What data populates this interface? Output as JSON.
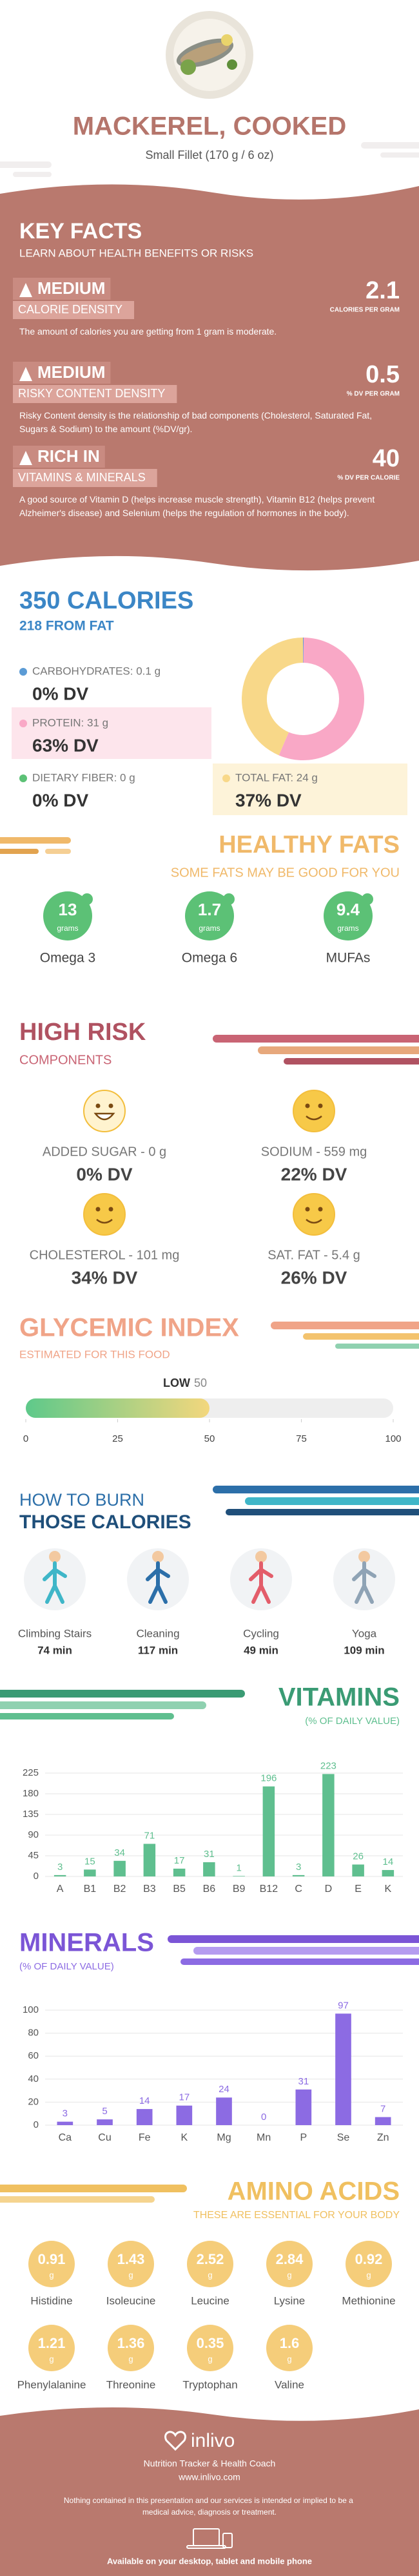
{
  "header": {
    "title": "MACKEREL, COOKED",
    "subtitle": "Small Fillet (170 g / 6 oz)"
  },
  "key_facts": {
    "title": "KEY FACTS",
    "subtitle": "LEARN ABOUT HEALTH BENEFITS OR RISKS",
    "items": [
      {
        "level": "MEDIUM",
        "name": "CALORIE DENSITY",
        "value": "2.1",
        "unit": "CALORIES PER GRAM",
        "description": "The amount of calories you are getting from 1 gram is moderate."
      },
      {
        "level": "MEDIUM",
        "name": "RISKY CONTENT DENSITY",
        "value": "0.5",
        "unit": "% DV PER GRAM",
        "description": "Risky Content density is the relationship of bad components (Cholesterol, Saturated Fat, Sugars & Sodium) to the amount (%DV/gr)."
      },
      {
        "level": "RICH IN",
        "name": "VITAMINS & MINERALS",
        "value": "40",
        "unit": "% DV PER CALORIE",
        "description": "A good source of Vitamin D (helps increase muscle strength), Vitamin B12 (helps prevent Alzheimer's disease) and Selenium (helps the regulation of hormones in the body)."
      }
    ]
  },
  "calories": {
    "title": "350 CALORIES",
    "subtitle": "218 FROM FAT",
    "items": [
      {
        "label": "CARBOHYDRATES: 0.1 g",
        "dv": "0% DV"
      },
      {
        "label": "PROTEIN: 31 g",
        "dv": "63% DV"
      },
      {
        "label": "DIETARY FIBER: 0 g",
        "dv": "0% DV"
      },
      {
        "label": "TOTAL FAT: 24 g",
        "dv": "37% DV"
      }
    ]
  },
  "healthy_fats": {
    "title": "HEALTHY FATS",
    "subtitle": "SOME FATS MAY BE GOOD FOR YOU",
    "items": [
      {
        "value": "13",
        "unit": "grams",
        "name": "Omega 3"
      },
      {
        "value": "1.7",
        "unit": "grams",
        "name": "Omega 6"
      },
      {
        "value": "9.4",
        "unit": "grams",
        "name": "MUFAs"
      }
    ]
  },
  "high_risk": {
    "title": "HIGH RISK",
    "subtitle": "COMPONENTS",
    "items": [
      {
        "label": "ADDED SUGAR - 0 g",
        "dv": "0% DV"
      },
      {
        "label": "SODIUM - 559 mg",
        "dv": "22% DV"
      },
      {
        "label": "CHOLESTEROL - 101 mg",
        "dv": "34% DV"
      },
      {
        "label": "SAT. FAT - 5.4 g",
        "dv": "26% DV"
      }
    ]
  },
  "burn": {
    "title": "HOW TO BURN",
    "subtitle": "THOSE CALORIES",
    "activities": [
      {
        "name": "Climbing Stairs",
        "time": "74 min"
      },
      {
        "name": "Cleaning",
        "time": "117 min"
      },
      {
        "name": "Cycling",
        "time": "49 min"
      },
      {
        "name": "Yoga",
        "time": "109 min"
      }
    ]
  },
  "amino_acids": {
    "title": "AMINO ACIDS",
    "subtitle": "THESE ARE ESSENTIAL FOR YOUR BODY",
    "items": [
      {
        "value": "0.91",
        "unit": "g",
        "name": "Histidine"
      },
      {
        "value": "1.43",
        "unit": "g",
        "name": "Isoleucine"
      },
      {
        "value": "2.52",
        "unit": "g",
        "name": "Leucine"
      },
      {
        "value": "2.84",
        "unit": "g",
        "name": "Lysine"
      },
      {
        "value": "0.92",
        "unit": "g",
        "name": "Methionine"
      },
      {
        "value": "1.21",
        "unit": "g",
        "name": "Phenylalanine"
      },
      {
        "value": "1.36",
        "unit": "g",
        "name": "Threonine"
      },
      {
        "value": "0.35",
        "unit": "g",
        "name": "Tryptophan"
      },
      {
        "value": "1.6",
        "unit": "g",
        "name": "Valine"
      }
    ]
  },
  "footer": {
    "brand": "inlivo",
    "tagline": "Nutrition Tracker & Health Coach",
    "url": "www.inlivo.com",
    "disclaimer": "Nothing contained in this presentation and our services is intended or implied to be a medical advice, diagnosis or treatment.",
    "availability": "Available on your desktop, tablet and mobile phone"
  },
  "chart_data": [
    {
      "type": "pie",
      "values": [
        0.1,
        31,
        0,
        24
      ],
      "colors": [
        "#5b9bd5",
        "#f9a8c6",
        "#5cc176",
        "#f8d889"
      ],
      "donut": true
    },
    {
      "type": "gauge",
      "title": "GLYCEMIC INDEX",
      "subtitle": "ESTIMATED FOR THIS FOOD",
      "level": "LOW",
      "value": 50,
      "xlim": [
        0,
        100
      ],
      "xticks": [
        0,
        25,
        50,
        75,
        100
      ],
      "colors": [
        "#5ec98a",
        "#f3d77d"
      ]
    },
    {
      "type": "bar",
      "title": "VITAMINS",
      "subtitle": "(% OF DAILY VALUE)",
      "categories": [
        "A",
        "B1",
        "B2",
        "B3",
        "B5",
        "B6",
        "B9",
        "B12",
        "C",
        "D",
        "E",
        "K"
      ],
      "values": [
        3,
        15,
        34,
        71,
        17,
        31,
        1,
        196,
        3,
        223,
        26,
        14
      ],
      "color": "#5fbf8f",
      "ylim": [
        0,
        225
      ],
      "yticks": [
        0,
        45,
        90,
        135,
        180,
        225
      ],
      "grid": true
    },
    {
      "type": "bar",
      "title": "MINERALS",
      "subtitle": "(% OF DAILY VALUE)",
      "categories": [
        "Ca",
        "Cu",
        "Fe",
        "K",
        "Mg",
        "Mn",
        "P",
        "Se",
        "Zn"
      ],
      "values": [
        3,
        5,
        14,
        17,
        24,
        0,
        31,
        97,
        7
      ],
      "color": "#8c6be3",
      "ylim": [
        0,
        100
      ],
      "yticks": [
        0,
        20,
        40,
        60,
        80,
        100
      ],
      "grid": true
    }
  ]
}
